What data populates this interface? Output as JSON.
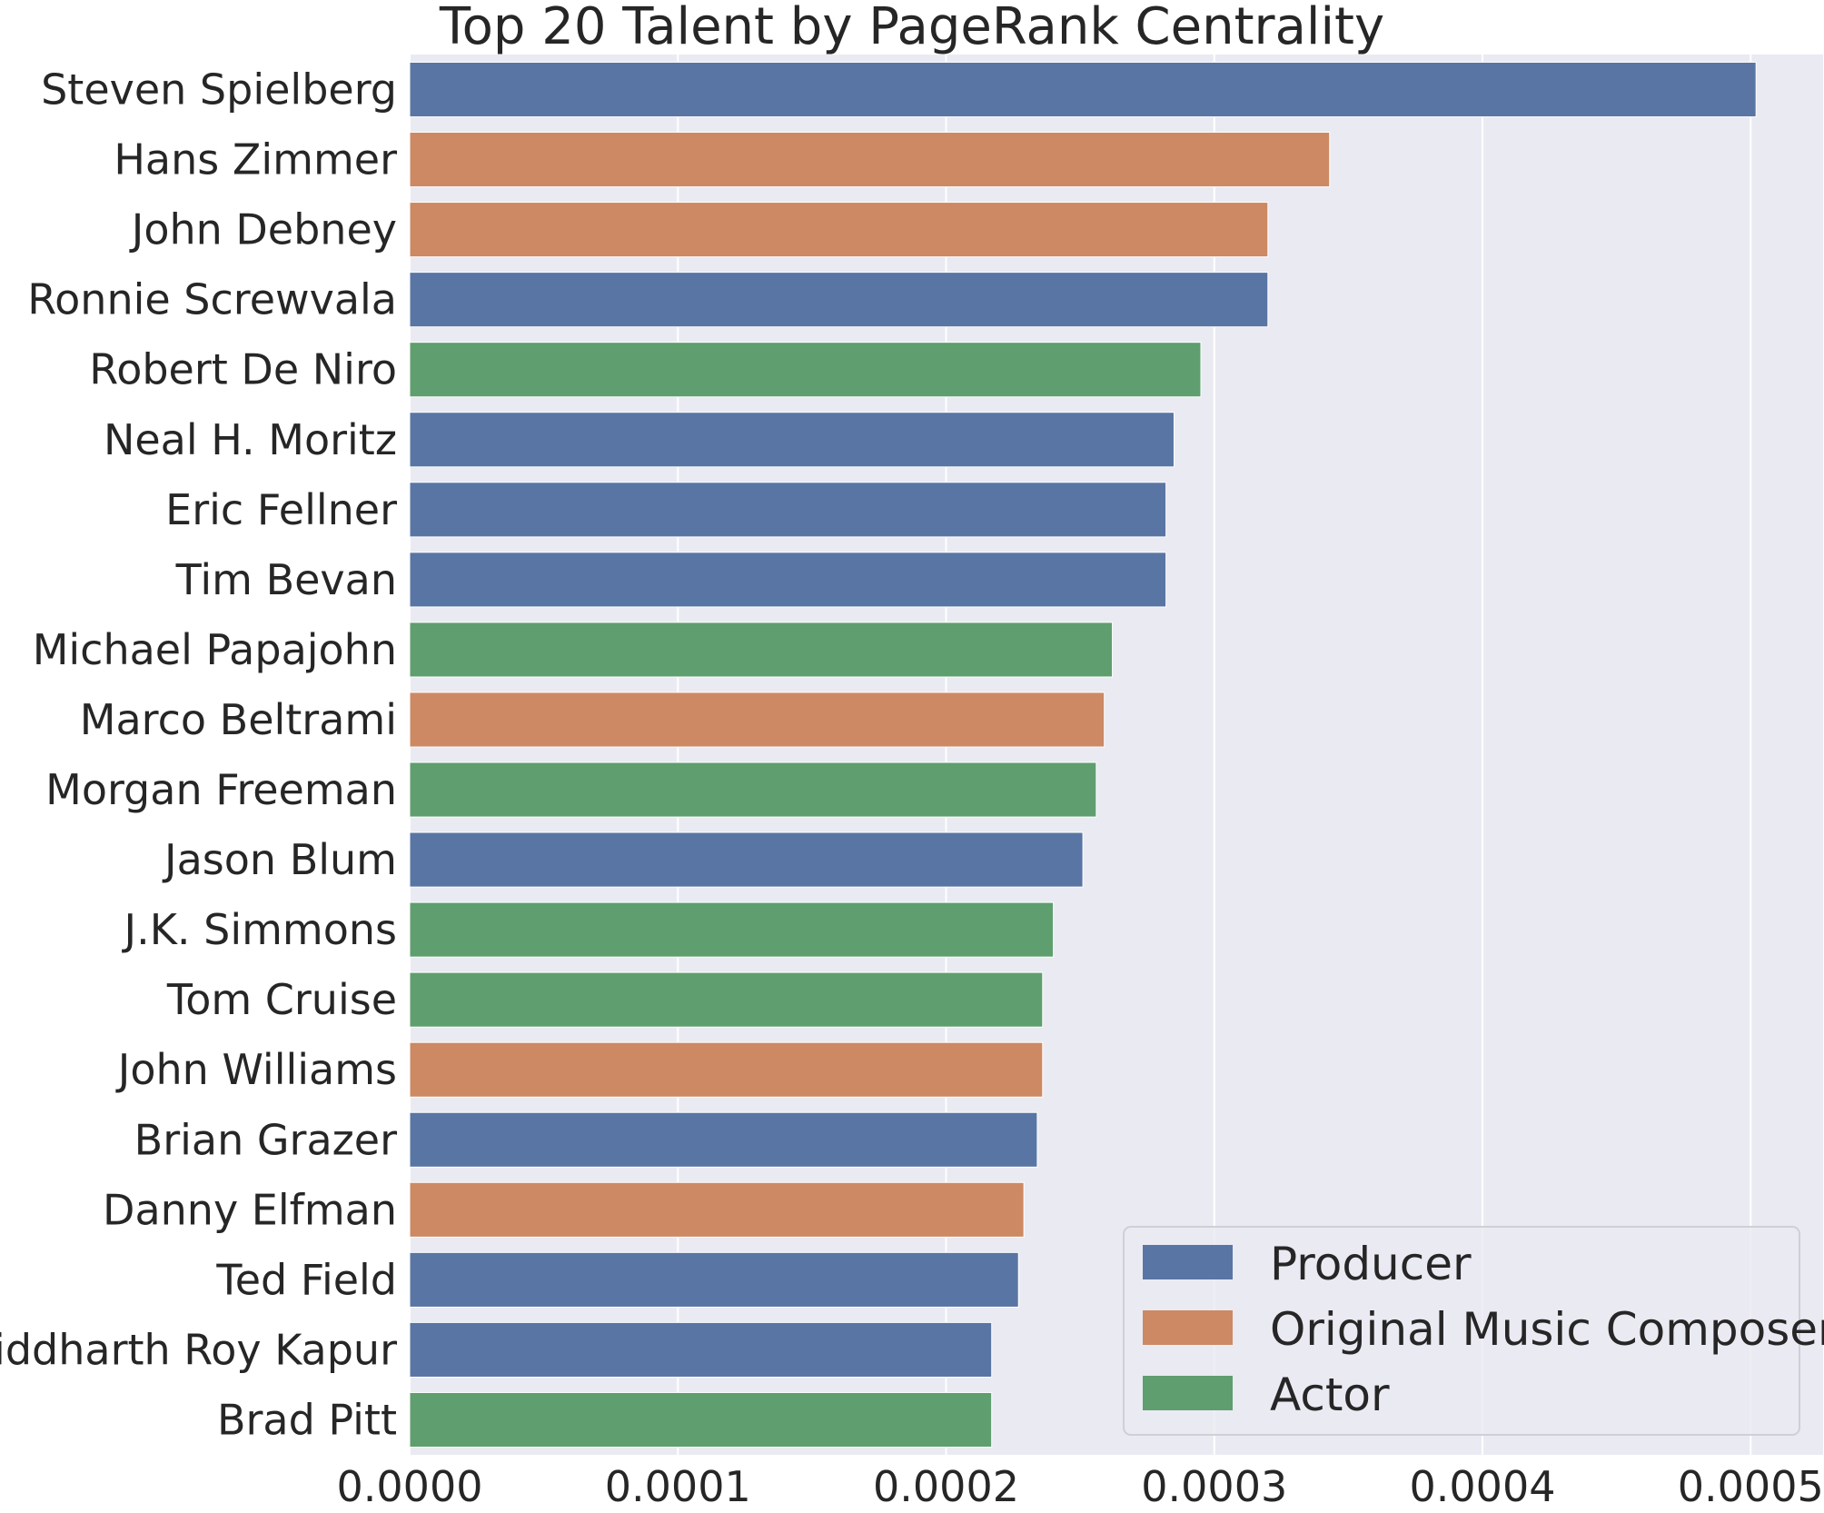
{
  "chart_data": {
    "type": "bar",
    "orientation": "horizontal",
    "title": "Top 20 Talent by PageRank Centrality",
    "xlabel": "",
    "ylabel": "",
    "xlim": [
      0,
      0.000527
    ],
    "x_ticks": [
      "0.0000",
      "0.0001",
      "0.0002",
      "0.0003",
      "0.0004",
      "0.0005"
    ],
    "grid": true,
    "legend_position": "lower-right",
    "categories": [
      "Steven Spielberg",
      "Hans Zimmer",
      "John Debney",
      "Ronnie Screwvala",
      "Robert De Niro",
      "Neal H. Moritz",
      "Eric Fellner",
      "Tim Bevan",
      "Michael Papajohn",
      "Marco Beltrami",
      "Morgan Freeman",
      "Jason Blum",
      "J.K. Simmons",
      "Tom Cruise",
      "John Williams",
      "Brian Grazer",
      "Danny Elfman",
      "Ted Field",
      "Siddharth Roy Kapur",
      "Brad Pitt"
    ],
    "values": [
      0.000502,
      0.000343,
      0.00032,
      0.00032,
      0.000295,
      0.000285,
      0.000282,
      0.000282,
      0.000262,
      0.000259,
      0.000256,
      0.000251,
      0.00024,
      0.000236,
      0.000236,
      0.000234,
      0.000229,
      0.000227,
      0.000217,
      0.000217
    ],
    "roles": [
      "Producer",
      "Original Music Composer",
      "Original Music Composer",
      "Producer",
      "Actor",
      "Producer",
      "Producer",
      "Producer",
      "Actor",
      "Original Music Composer",
      "Actor",
      "Producer",
      "Actor",
      "Actor",
      "Original Music Composer",
      "Producer",
      "Original Music Composer",
      "Producer",
      "Producer",
      "Actor"
    ],
    "legend": [
      {
        "name": "Producer",
        "color": "#5975a4"
      },
      {
        "name": "Original Music Composer",
        "color": "#cc8963"
      },
      {
        "name": "Actor",
        "color": "#5f9e6e"
      }
    ]
  }
}
